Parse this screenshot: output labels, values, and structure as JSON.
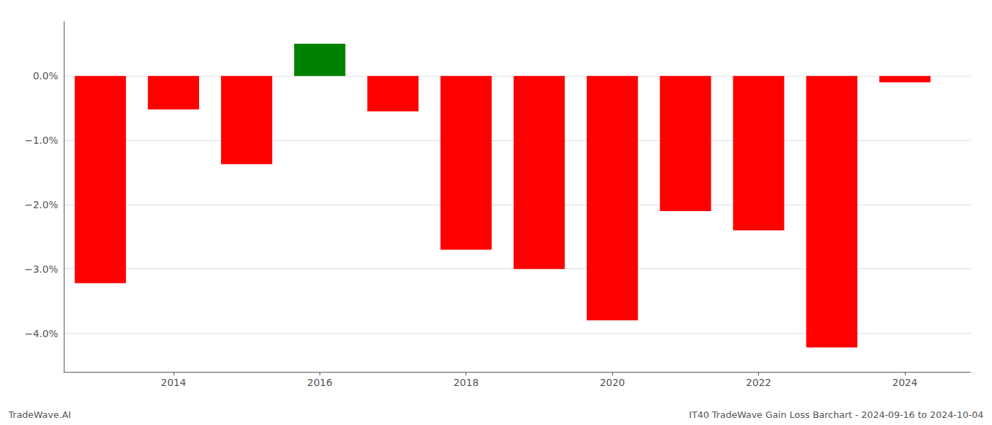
{
  "chart_data": {
    "type": "bar",
    "x": [
      2013,
      2014,
      2015,
      2016,
      2017,
      2018,
      2019,
      2020,
      2021,
      2022,
      2023,
      2024
    ],
    "values": [
      -3.22,
      -0.52,
      -1.37,
      0.5,
      -0.55,
      -2.7,
      -3.0,
      -3.8,
      -2.1,
      -2.4,
      -4.22,
      -0.1
    ],
    "colors": [
      "#ff0000",
      "#ff0000",
      "#ff0000",
      "#008000",
      "#ff0000",
      "#ff0000",
      "#ff0000",
      "#ff0000",
      "#ff0000",
      "#ff0000",
      "#ff0000",
      "#ff0000"
    ],
    "xlim": [
      2012.5,
      2024.9
    ],
    "ylim": [
      -4.6,
      0.85
    ],
    "xticks": [
      2014,
      2016,
      2018,
      2020,
      2022,
      2024
    ],
    "yticks": [
      {
        "value": 0.0,
        "label": "0.0%"
      },
      {
        "value": -1.0,
        "label": "−1.0%"
      },
      {
        "value": -2.0,
        "label": "−2.0%"
      },
      {
        "value": -3.0,
        "label": "−3.0%"
      },
      {
        "value": -4.0,
        "label": "−4.0%"
      }
    ],
    "grid": true,
    "annotations": [
      "TradeWave.AI",
      "IT40 TradeWave Gain Loss Barchart - 2024-09-16 to 2024-10-04"
    ]
  }
}
